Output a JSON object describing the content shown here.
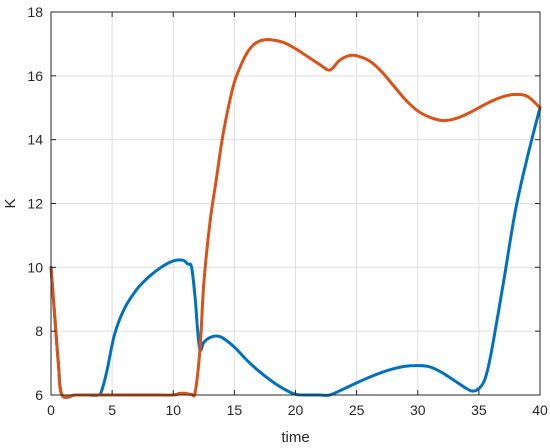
{
  "chart_data": {
    "type": "line",
    "title": "",
    "xlabel": "time",
    "ylabel": "K",
    "xlim": [
      0,
      40
    ],
    "ylim": [
      6,
      18
    ],
    "xticks": [
      0,
      5,
      10,
      15,
      20,
      25,
      30,
      35,
      40
    ],
    "yticks": [
      6,
      8,
      10,
      12,
      14,
      16,
      18
    ],
    "grid": true,
    "legend": "none",
    "series": [
      {
        "color": "#0072BD",
        "x": [
          0,
          0.3,
          0.6,
          0.9,
          2,
          3,
          3.9,
          4.2,
          4.6,
          5.2,
          6,
          7,
          8,
          9,
          10,
          10.8,
          11.2,
          11.5,
          11.8,
          12.0,
          12.2,
          12.5,
          13,
          13.5,
          14,
          15,
          16,
          17,
          18,
          19,
          20,
          21,
          22,
          22.8,
          24,
          25,
          26,
          27,
          28,
          29,
          30,
          31,
          32,
          33,
          34,
          34.5,
          35,
          35.5,
          36,
          37,
          38,
          39,
          40
        ],
        "y": [
          10,
          8.5,
          7.0,
          6.0,
          6.0,
          6.0,
          6.0,
          6.2,
          6.8,
          7.9,
          8.7,
          9.3,
          9.7,
          10.0,
          10.2,
          10.22,
          10.1,
          10.0,
          9.0,
          8.0,
          7.4,
          7.65,
          7.8,
          7.85,
          7.8,
          7.5,
          7.1,
          6.75,
          6.45,
          6.2,
          6.02,
          6.0,
          6.0,
          6.0,
          6.2,
          6.38,
          6.55,
          6.7,
          6.82,
          6.9,
          6.92,
          6.88,
          6.7,
          6.45,
          6.2,
          6.12,
          6.2,
          6.5,
          7.3,
          9.5,
          11.8,
          13.5,
          15.0
        ]
      },
      {
        "color": "#D95319",
        "x": [
          0,
          0.3,
          0.6,
          0.9,
          2,
          4,
          6,
          8,
          10,
          10.5,
          11,
          11.5,
          11.8,
          12.2,
          12.5,
          13,
          13.5,
          14,
          14.5,
          15,
          15.5,
          16,
          16.5,
          17,
          17.5,
          18,
          19,
          20,
          21,
          22,
          22.8,
          23.5,
          24,
          24.5,
          25,
          26,
          27,
          28,
          29,
          30,
          31,
          32,
          33,
          34,
          35,
          36,
          37,
          38,
          39,
          40
        ],
        "y": [
          10,
          8.5,
          7.0,
          6.0,
          6.0,
          6.0,
          6.0,
          6.0,
          6.0,
          6.05,
          6.05,
          6.02,
          6.1,
          7.5,
          9.5,
          11.4,
          12.7,
          14.0,
          15.0,
          15.8,
          16.3,
          16.7,
          16.95,
          17.08,
          17.13,
          17.13,
          17.05,
          16.85,
          16.6,
          16.35,
          16.18,
          16.45,
          16.58,
          16.64,
          16.63,
          16.48,
          16.15,
          15.7,
          15.25,
          14.9,
          14.7,
          14.6,
          14.65,
          14.8,
          15.0,
          15.2,
          15.35,
          15.42,
          15.35,
          15.0
        ]
      }
    ]
  }
}
